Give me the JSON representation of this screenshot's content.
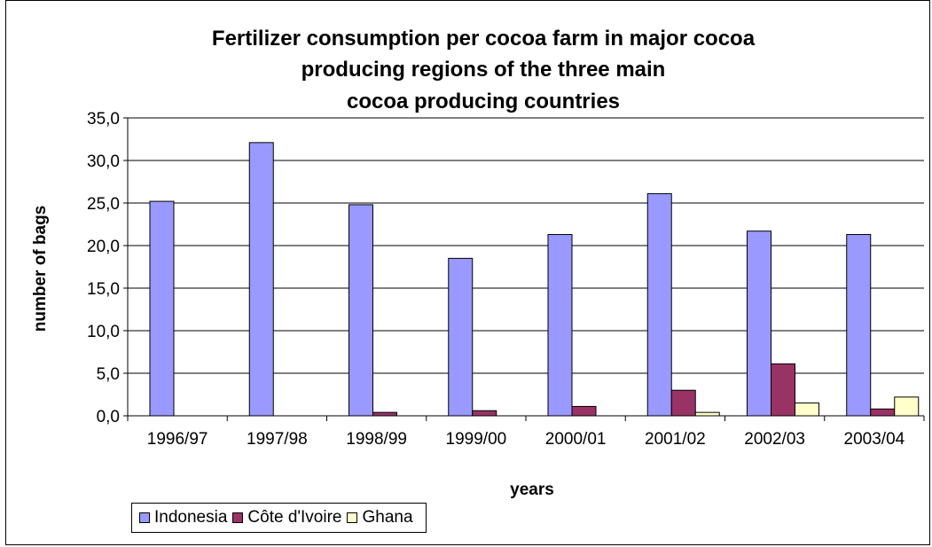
{
  "chart_data": {
    "type": "bar",
    "title_lines": [
      "Fertilizer consumption per cocoa farm  in major cocoa",
      "producing regions of the three main",
      "cocoa producing countries"
    ],
    "xlabel": "years",
    "ylabel": "number of bags",
    "categories": [
      "1996/97",
      "1997/98",
      "1998/99",
      "1999/00",
      "2000/01",
      "2001/02",
      "2002/03",
      "2003/04"
    ],
    "ylim": [
      0,
      35
    ],
    "yticks": [
      "0,0",
      "5,0",
      "10,0",
      "15,0",
      "20,0",
      "25,0",
      "30,0",
      "35,0"
    ],
    "grid": "horizontal",
    "legend_position": "bottom-left",
    "series": [
      {
        "name": "Indonesia",
        "color": "#9999ff",
        "values": [
          25.2,
          32.1,
          24.8,
          18.5,
          21.3,
          26.1,
          21.7,
          21.3
        ]
      },
      {
        "name": "Côte d'Ivoire",
        "color": "#993366",
        "values": [
          0,
          0,
          0.4,
          0.6,
          1.1,
          3.0,
          6.1,
          0.8
        ]
      },
      {
        "name": "Ghana",
        "color": "#ffffcc",
        "values": [
          0,
          0,
          0,
          0,
          0,
          0.4,
          1.5,
          2.2
        ]
      }
    ]
  }
}
